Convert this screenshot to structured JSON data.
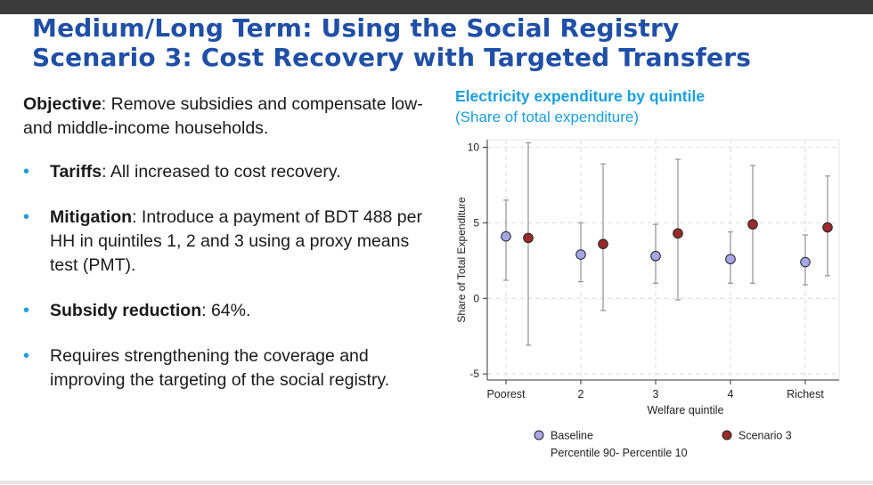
{
  "slide": {
    "title_line1": "Medium/Long Term: Using the Social Registry",
    "title_line2": "Scenario 3: Cost Recovery with Targeted Transfers",
    "objective_label": "Objective",
    "objective_text": ": Remove subsidies and compensate low- and middle-income households.",
    "bullets": [
      {
        "bold": "Tariffs",
        "text": ": All increased to cost recovery."
      },
      {
        "bold": "Mitigation",
        "text": ": Introduce a payment of BDT 488 per HH in quintiles 1, 2 and 3 using a proxy means test (PMT)."
      },
      {
        "bold": "Subsidy reduction",
        "text": ": 64%."
      },
      {
        "bold": "",
        "text": "Requires strengthening the coverage and improving the targeting of the social registry."
      }
    ],
    "bullet_marker": "•",
    "chart_title": "Electricity expenditure by quintile",
    "chart_subtitle": "(Share of total expenditure)"
  },
  "chart_data": {
    "type": "scatter",
    "title": "Electricity expenditure by quintile",
    "subtitle": "(Share of total expenditure)",
    "xlabel": "Welfare quintile",
    "ylabel": "Share of Total Expenditure",
    "categories": [
      "Poorest",
      "2",
      "3",
      "4",
      "Richest"
    ],
    "ylim": [
      -5.4,
      10.5
    ],
    "yticks": [
      -5,
      0,
      5,
      10
    ],
    "grid": true,
    "legend_placement": "bottom",
    "series": [
      {
        "name": "Baseline",
        "color": "#a6a6e8",
        "values": [
          4.1,
          2.9,
          2.8,
          2.6,
          2.4
        ],
        "p10": [
          1.2,
          1.1,
          1.0,
          1.0,
          0.9
        ],
        "p90": [
          6.5,
          5.0,
          4.9,
          4.4,
          4.2
        ]
      },
      {
        "name": "Scenario 3",
        "color": "#9a2a2a",
        "values": [
          4.0,
          3.6,
          4.3,
          4.9,
          4.7
        ],
        "p10": [
          -3.1,
          -0.8,
          -0.1,
          1.0,
          1.5
        ],
        "p90": [
          10.3,
          8.9,
          9.2,
          8.8,
          8.1
        ]
      }
    ],
    "legend_note": "Percentile 90- Percentile 10"
  }
}
